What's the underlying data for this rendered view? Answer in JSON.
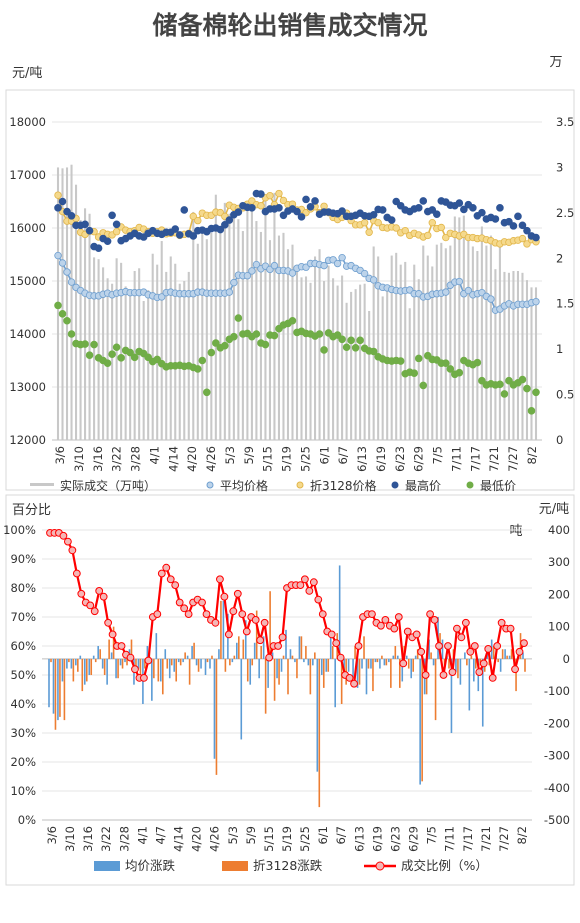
{
  "page_title": "储备棉轮出销售成交情况",
  "colors": {
    "volume_bar": "#c8c8c8",
    "avg_price": "#bcd3ea",
    "avg_price_edge": "#6f9fcf",
    "price_3128": "#f5d98c",
    "price_3128_edge": "#e2b64a",
    "max_price": "#2f5597",
    "min_price": "#70ad47",
    "avg_change": "#5b9bd5",
    "change_3128": "#ed7d31",
    "ratio": "#ff0000",
    "ratio_marker": "#f4b6b6"
  },
  "chart_data": [
    {
      "type": "line",
      "y_left_unit": "元/吨",
      "y_right_unit": "万",
      "ylim_left": [
        12000,
        18000
      ],
      "ylim_right": [
        0,
        3.5
      ],
      "y_left_ticks": [
        "12000",
        "13000",
        "14000",
        "15000",
        "16000",
        "17000",
        "18000"
      ],
      "y_right_ticks": [
        "0",
        "0.5",
        "1",
        "1.5",
        "2",
        "2.5",
        "3",
        "3.5"
      ],
      "x_tick_labels": [
        "3/6",
        "3/10",
        "3/16",
        "3/22",
        "3/28",
        "4/1",
        "4/14",
        "4/20",
        "4/26",
        "5/3",
        "5/9",
        "5/15",
        "5/19",
        "5/25",
        "6/1",
        "6/7",
        "6/13",
        "6/19",
        "6/23",
        "6/29",
        "7/5",
        "7/11",
        "7/17",
        "7/21",
        "7/27",
        "8/2"
      ],
      "n_points": 107,
      "legend": [
        "实际成交（万吨）",
        "平均价格",
        "折3128价格",
        "最高价",
        "最低价"
      ],
      "series": [
        {
          "name": "实际成交（万吨）",
          "type": "bar",
          "axis": "right",
          "values": [
            3,
            2.99,
            3,
            3.03,
            2.81,
            2.42,
            2.55,
            2.49,
            2.01,
            1.99,
            1.9,
            1.78,
            1.72,
            2.0,
            1.95,
            1.69,
            1.61,
            1.86,
            1.89,
            1.53,
            1.65,
            2.05,
            1.93,
            2.19,
            1.85,
            2.02,
            1.94,
            1.72,
            1.75,
            1.85,
            2.51,
            2.16,
            2.34,
            2.21,
            2.28,
            2.7,
            2.3,
            2.61,
            2.49,
            2.54,
            2.43,
            2.3,
            2.53,
            2.64,
            2.41,
            2.29,
            2.64,
            2.2,
            2.72,
            2.25,
            2.28,
            2.1,
            2.15,
            1.93,
            1.79,
            1.8,
            1.73,
            2.02,
            2.1,
            1.75,
            1.92,
            1.78,
            1.7,
            1.81,
            1.51,
            1.63,
            1.66,
            1.71,
            1.72,
            1.42,
            2.13,
            2.02,
            1.58,
            1.69,
            2.03,
            2.06,
            1.93,
            1.96,
            1.45,
            1.93,
            1.77,
            2.14,
            2.03,
            1.91,
            2.15,
            2.17,
            2.11,
            2.14,
            2.46,
            2.45,
            2.47,
            2.21,
            2.13,
            2.08,
            2.35,
            2.14,
            2.25,
            1.88,
            2.16,
            1.85,
            1.84,
            1.86,
            1.86,
            1.84,
            1.76,
            1.68,
            1.68
          ]
        },
        {
          "name": "平均价格",
          "type": "line",
          "axis": "left",
          "values": [
            15480,
            15340,
            15170,
            14980,
            14880,
            14820,
            14770,
            14730,
            14720,
            14720,
            14750,
            14770,
            14740,
            14770,
            14780,
            14800,
            14780,
            14780,
            14780,
            14790,
            14740,
            14720,
            14690,
            14700,
            14780,
            14790,
            14770,
            14760,
            14760,
            14760,
            14760,
            14790,
            14790,
            14770,
            14770,
            14770,
            14770,
            14770,
            14790,
            14970,
            15110,
            15100,
            15100,
            15190,
            15310,
            15230,
            15280,
            15220,
            15290,
            15200,
            15200,
            15190,
            15150,
            15240,
            15270,
            15260,
            15330,
            15330,
            15310,
            15290,
            15390,
            15400,
            15330,
            15440,
            15280,
            15290,
            15240,
            15200,
            15140,
            15050,
            15020,
            14910,
            14880,
            14870,
            14840,
            14820,
            14810,
            14820,
            14830,
            14760,
            14760,
            14700,
            14710,
            14750,
            14760,
            14770,
            14790,
            14920,
            14980,
            14990,
            14760,
            14820,
            14740,
            14760,
            14780,
            14710,
            14660,
            14450,
            14470,
            14530,
            14570,
            14530,
            14560,
            14560,
            14560,
            14590,
            14610
          ]
        },
        {
          "name": "折3128价格",
          "type": "line",
          "axis": "left",
          "values": [
            16620,
            16310,
            16130,
            16130,
            16180,
            15920,
            15880,
            15940,
            15930,
            15830,
            15910,
            15880,
            15870,
            15930,
            16020,
            15960,
            15930,
            15950,
            16010,
            15980,
            15930,
            15900,
            15930,
            15960,
            15890,
            15900,
            15910,
            15860,
            15880,
            15900,
            16220,
            16140,
            16280,
            16240,
            16240,
            16300,
            16290,
            16220,
            16430,
            16390,
            16370,
            16380,
            16450,
            16510,
            16440,
            16420,
            16570,
            16610,
            16440,
            16650,
            16520,
            16440,
            16450,
            16340,
            16350,
            16290,
            16360,
            16400,
            16290,
            16410,
            16290,
            16200,
            16160,
            16200,
            16280,
            16140,
            16060,
            16060,
            16100,
            15920,
            16140,
            16100,
            16010,
            16000,
            16020,
            16000,
            15910,
            15950,
            15860,
            15900,
            15870,
            15830,
            15860,
            16100,
            15990,
            16010,
            15820,
            15900,
            15880,
            15850,
            15880,
            15820,
            15820,
            15800,
            15810,
            15780,
            15760,
            15720,
            15700,
            15740,
            15730,
            15760,
            15770,
            15800,
            15700,
            15780,
            15740
          ]
        },
        {
          "name": "最高价",
          "type": "line",
          "axis": "left",
          "values": [
            16380,
            16500,
            16310,
            16230,
            16050,
            16050,
            16070,
            15950,
            15650,
            15620,
            15800,
            15750,
            16240,
            16070,
            15760,
            15800,
            15850,
            15900,
            15850,
            15830,
            15900,
            15950,
            15900,
            15880,
            15920,
            15920,
            15980,
            15870,
            16340,
            15890,
            15850,
            15950,
            15960,
            15930,
            15990,
            16000,
            15970,
            16060,
            16150,
            16250,
            16300,
            16420,
            16390,
            16380,
            16650,
            16640,
            16310,
            16360,
            16360,
            16380,
            16240,
            16320,
            16360,
            16310,
            16210,
            16540,
            16400,
            16510,
            16260,
            16300,
            16300,
            16280,
            16270,
            16320,
            16220,
            16220,
            16240,
            16280,
            16230,
            16220,
            16250,
            16350,
            16340,
            16200,
            16150,
            16500,
            16420,
            16340,
            16310,
            16360,
            16380,
            16510,
            16310,
            16340,
            16260,
            16510,
            16490,
            16430,
            16420,
            16470,
            16350,
            16440,
            16380,
            16230,
            16290,
            16170,
            16200,
            16170,
            16380,
            16100,
            16120,
            16040,
            16220,
            16050,
            15950,
            15850,
            15820
          ]
        },
        {
          "name": "最低价",
          "type": "line",
          "axis": "left",
          "values": [
            14540,
            14380,
            14250,
            14000,
            13820,
            13800,
            13810,
            13600,
            13800,
            13550,
            13500,
            13450,
            13620,
            13750,
            13550,
            13690,
            13650,
            13560,
            13670,
            13630,
            13560,
            13480,
            13520,
            13440,
            13380,
            13400,
            13400,
            13410,
            13390,
            13400,
            13370,
            13340,
            13500,
            12900,
            13650,
            13830,
            13740,
            13780,
            13900,
            13950,
            14300,
            14000,
            14010,
            13950,
            14000,
            13830,
            13800,
            13980,
            13970,
            14100,
            14170,
            14200,
            14250,
            14030,
            14050,
            14010,
            14000,
            13960,
            14000,
            13700,
            14020,
            13950,
            13980,
            13900,
            13750,
            13880,
            13740,
            13880,
            13730,
            13680,
            13670,
            13570,
            13530,
            13500,
            13490,
            13500,
            13490,
            13250,
            13280,
            13260,
            13540,
            13030,
            13590,
            13520,
            13510,
            13450,
            13450,
            13340,
            13240,
            13270,
            13500,
            13450,
            13420,
            13460,
            13120,
            13040,
            13060,
            13040,
            13050,
            12870,
            13120,
            13040,
            13080,
            13140,
            12970,
            12550,
            12900
          ]
        }
      ]
    },
    {
      "type": "bar",
      "y_left_unit": "百分比",
      "y_right_unit": "元/吨",
      "ylim_left": [
        0,
        100
      ],
      "ylim_right": [
        -500,
        400
      ],
      "y_left_ticks": [
        "0%",
        "10%",
        "20%",
        "30%",
        "40%",
        "50%",
        "60%",
        "70%",
        "80%",
        "90%",
        "100%"
      ],
      "y_right_ticks": [
        "-500",
        "-400",
        "-300",
        "-200",
        "-100",
        "0",
        "100",
        "200",
        "300",
        "400"
      ],
      "x_tick_labels": [
        "3/6",
        "3/10",
        "3/16",
        "3/22",
        "3/28",
        "4/1",
        "4/7",
        "4/14",
        "4/20",
        "4/26",
        "5/3",
        "5/9",
        "5/15",
        "5/19",
        "5/25",
        "6/1",
        "6/7",
        "6/13",
        "6/19",
        "6/23",
        "6/29",
        "7/5",
        "7/11",
        "7/17",
        "7/21",
        "7/27",
        "8/2"
      ],
      "legend": [
        "均价涨跌",
        "折3128涨跌",
        "成交比例（%）"
      ],
      "series": [
        {
          "name": "均价涨跌",
          "type": "bar",
          "axis": "right",
          "values": [
            -150,
            -170,
            -190,
            -70,
            -30,
            -30,
            -20,
            10,
            -80,
            -50,
            10,
            40,
            -30,
            -80,
            20,
            -60,
            -20,
            -10,
            30,
            -80,
            -30,
            -140,
            40,
            -130,
            80,
            -70,
            30,
            -60,
            -40,
            -10,
            -10,
            10,
            40,
            -20,
            -30,
            -50,
            -30,
            -310,
            30,
            180,
            140,
            -10,
            50,
            -250,
            120,
            -80,
            50,
            -60,
            70,
            -90,
            20,
            -60,
            -40,
            90,
            30,
            -10,
            70,
            -10,
            -20,
            -20,
            -350,
            -50,
            -40,
            80,
            -150,
            290,
            -50,
            -40,
            -60,
            -90,
            -30,
            -110,
            -30,
            -10,
            -30,
            -20,
            -10,
            10,
            10,
            -70,
            10,
            -60,
            10,
            -390,
            -110,
            60,
            -20,
            130,
            60,
            10,
            -230,
            -40,
            -80,
            20,
            -160,
            -70,
            -100,
            -210,
            20,
            60,
            40,
            -40,
            30,
            10,
            10,
            30,
            20
          ]
        },
        {
          "name": "折3128涨跌",
          "type": "bar",
          "axis": "right",
          "values": [
            -10,
            -220,
            -180,
            -190,
            -10,
            -70,
            -40,
            -100,
            -70,
            -50,
            -10,
            30,
            -50,
            60,
            100,
            -60,
            -30,
            -20,
            60,
            -30,
            -50,
            -30,
            30,
            -60,
            -70,
            -110,
            -30,
            -20,
            -70,
            -20,
            20,
            -80,
            50,
            -40,
            0,
            -10,
            10,
            -360,
            180,
            -40,
            -20,
            10,
            70,
            60,
            -70,
            -20,
            150,
            40,
            -170,
            210,
            -130,
            -80,
            10,
            -110,
            10,
            -60,
            70,
            40,
            -110,
            20,
            -460,
            -90,
            -40,
            40,
            80,
            -140,
            -80,
            0,
            40,
            -80,
            70,
            -30,
            -100,
            -10,
            10,
            -20,
            -90,
            40,
            -90,
            40,
            -30,
            -40,
            30,
            -380,
            -110,
            20,
            -190,
            80,
            -20,
            -30,
            30,
            -60,
            0,
            -20,
            10,
            -30,
            -20,
            -40,
            -20,
            40,
            -10,
            30,
            10,
            30,
            -100,
            80,
            -40
          ]
        },
        {
          "name": "成交比例（%）",
          "type": "line",
          "axis": "left",
          "values": [
            99,
            99,
            99,
            98,
            96,
            93,
            85,
            78,
            75,
            74,
            72,
            79,
            77,
            68,
            64,
            60,
            60,
            57,
            56,
            52,
            49,
            49,
            55,
            70,
            71,
            85,
            87,
            83,
            81,
            75,
            73,
            71,
            75,
            76,
            75,
            71,
            69,
            68,
            83,
            77,
            64,
            72,
            78,
            71,
            65,
            70,
            69,
            62,
            68,
            56,
            60,
            60,
            63,
            80,
            81,
            81,
            81,
            83,
            79,
            82,
            76,
            71,
            65,
            64,
            61,
            56,
            50,
            49,
            47,
            60,
            70,
            71,
            71,
            68,
            67,
            69,
            67,
            66,
            70,
            54,
            65,
            63,
            64,
            58,
            50,
            71,
            69,
            60,
            50,
            60,
            51,
            66,
            63,
            68,
            58,
            60,
            51,
            54,
            59,
            49,
            60,
            68,
            66,
            66,
            52,
            58,
            61
          ]
        }
      ]
    }
  ]
}
